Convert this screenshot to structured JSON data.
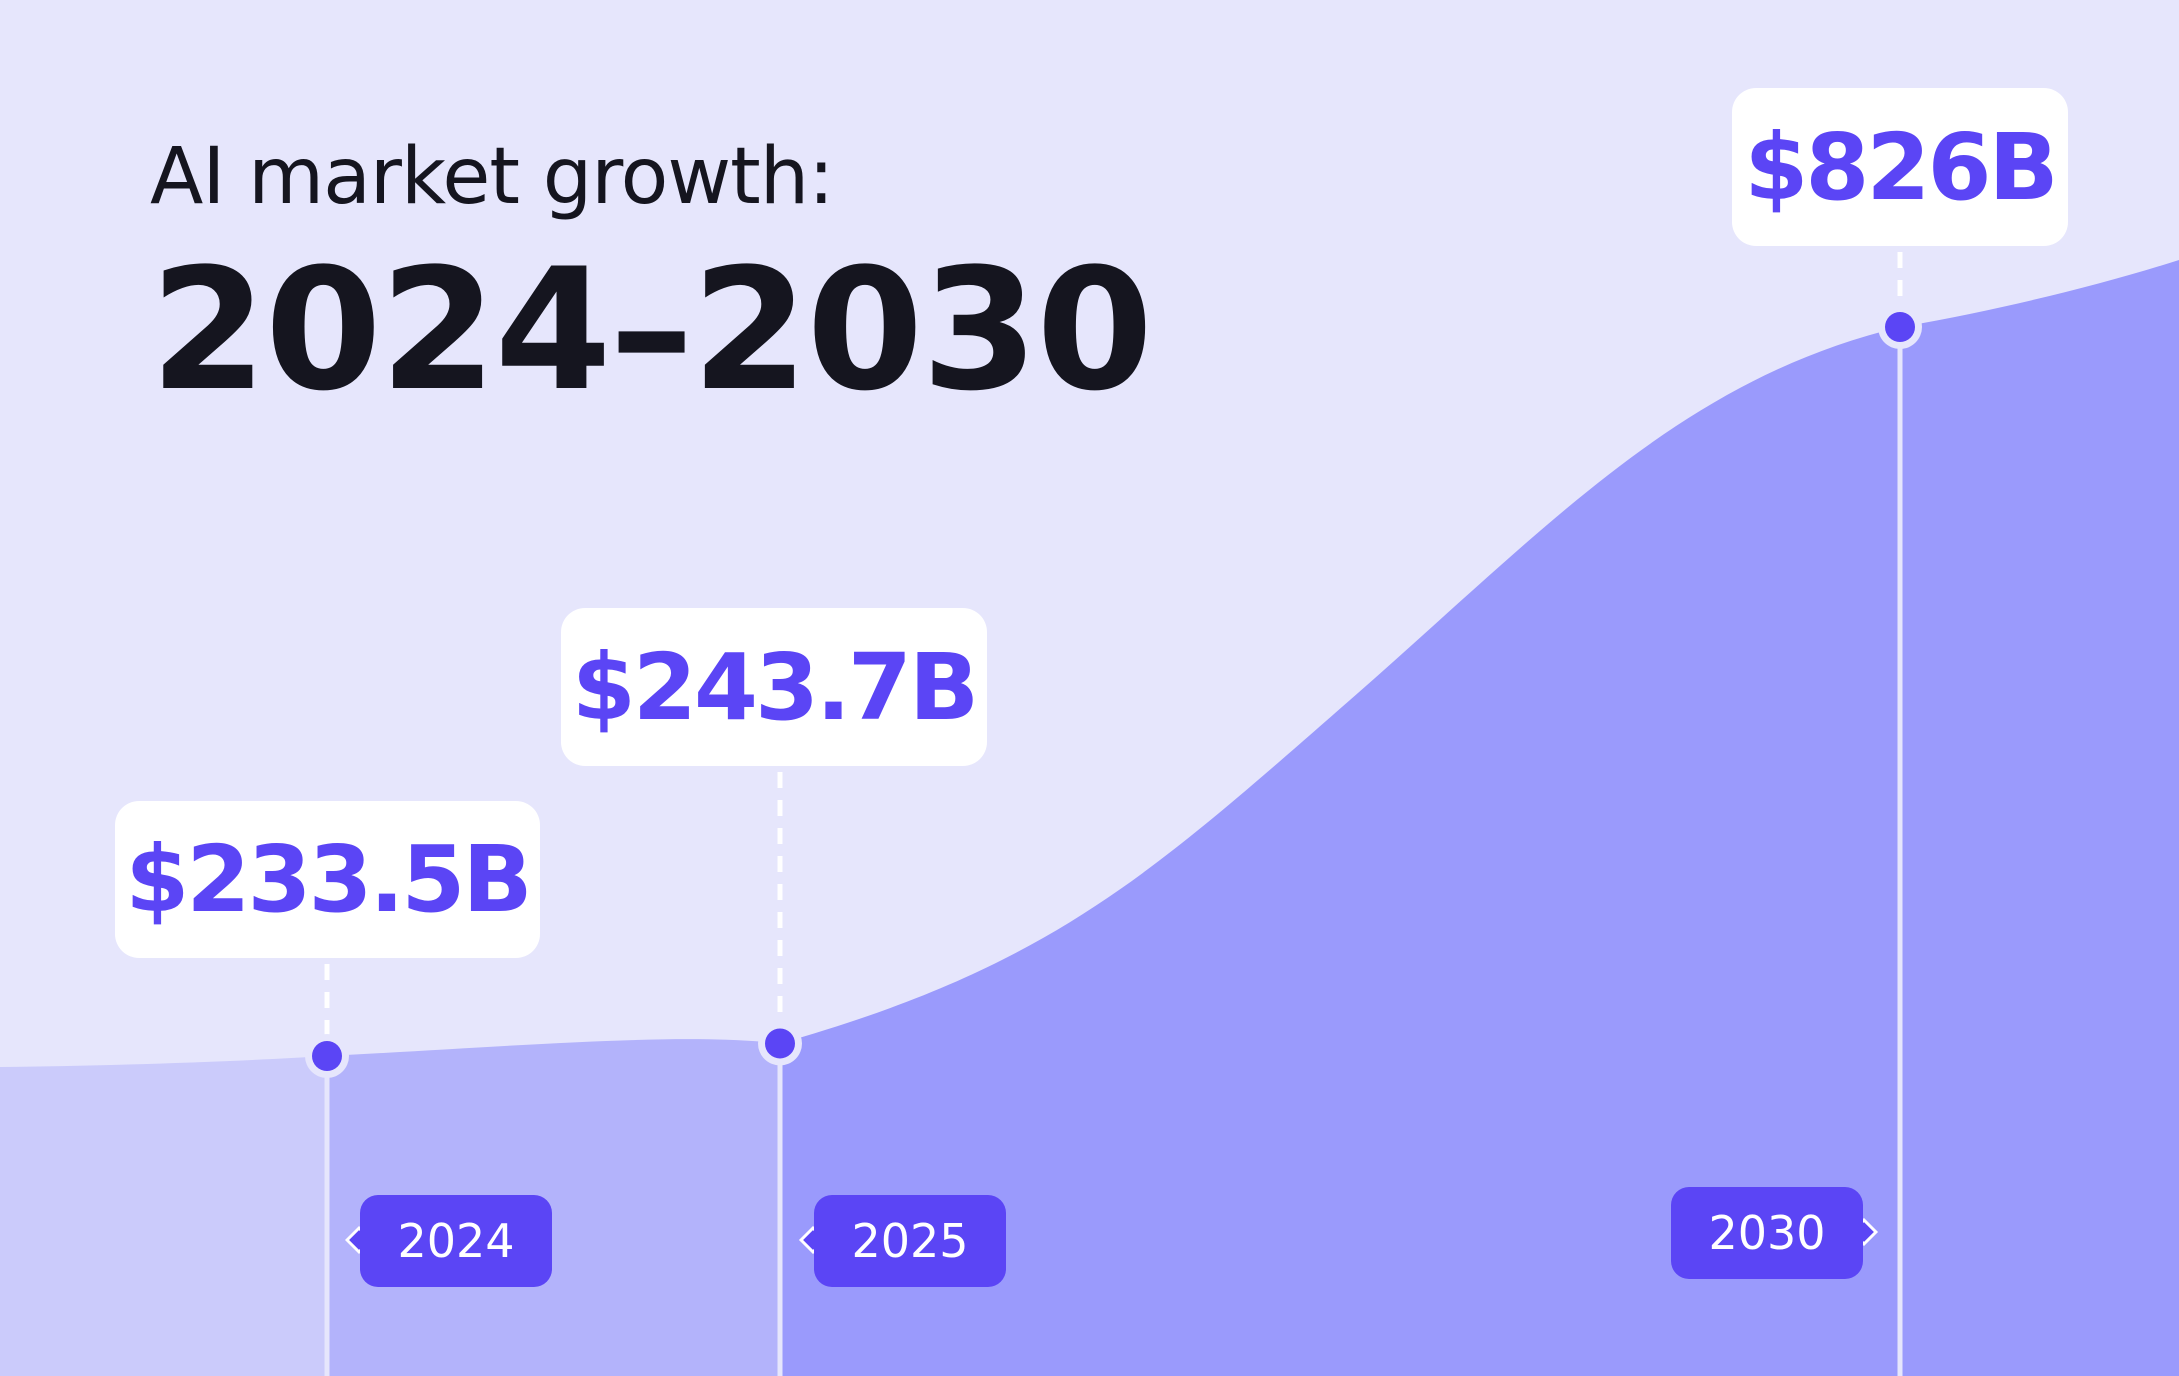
{
  "heading": {
    "line1": "AI market growth:",
    "line2": "2024–2030"
  },
  "colors": {
    "background": "#E6E6FC",
    "area_light": "#B3B3FB",
    "area_dark": "#9A9AFC",
    "accent": "#5B45F5",
    "card": "#FFFFFF"
  },
  "chart_data": {
    "type": "area",
    "x": [
      "2024",
      "2025",
      "2030"
    ],
    "values": [
      233.5,
      243.7,
      826
    ],
    "labels": [
      "$233.5B",
      "$243.7B",
      "$826B"
    ],
    "unit": "USD billions"
  }
}
